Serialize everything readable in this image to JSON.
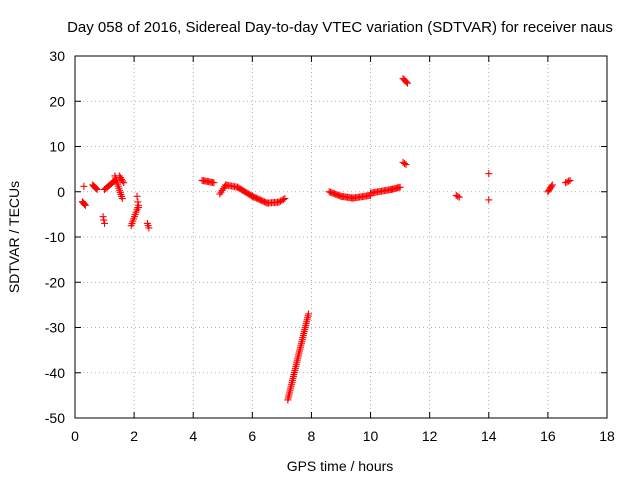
{
  "chart_data": {
    "type": "scatter",
    "title": "Day 058 of 2016, Sidereal Day-to-day VTEC variation (SDTVAR) for receiver naus",
    "xlabel": "GPS time / hours",
    "ylabel": "SDTVAR / TECUs",
    "xlim": [
      0,
      18
    ],
    "ylim": [
      -50,
      30
    ],
    "xticks": [
      0,
      2,
      4,
      6,
      8,
      10,
      12,
      14,
      16,
      18
    ],
    "yticks": [
      -50,
      -40,
      -30,
      -20,
      -10,
      0,
      10,
      20,
      30
    ],
    "grid": true,
    "marker": "+",
    "color": "#ff0000",
    "series": [
      {
        "name": "SDTVAR",
        "segments": [
          {
            "x0": 0.25,
            "y0": -2.2,
            "x1": 0.35,
            "y1": -3.0,
            "n": 5
          },
          {
            "x0": 0.6,
            "y0": 1.5,
            "x1": 0.75,
            "y1": 0.5,
            "n": 6
          },
          {
            "x0": 0.95,
            "y0": -5.5,
            "x1": 1.0,
            "y1": -7.0,
            "n": 3
          },
          {
            "x0": 1.0,
            "y0": 0.5,
            "x1": 1.35,
            "y1": 2.5,
            "n": 10
          },
          {
            "x0": 1.35,
            "y0": 3.5,
            "x1": 1.6,
            "y1": -1.5,
            "n": 12
          },
          {
            "x0": 1.5,
            "y0": 3.5,
            "x1": 1.65,
            "y1": 2.0,
            "n": 5
          },
          {
            "x0": 1.9,
            "y0": -7.5,
            "x1": 2.15,
            "y1": -3.0,
            "n": 10
          },
          {
            "x0": 2.1,
            "y0": -1.0,
            "x1": 2.15,
            "y1": -3.5,
            "n": 3
          },
          {
            "x0": 2.45,
            "y0": -7.0,
            "x1": 2.5,
            "y1": -8.0,
            "n": 3
          },
          {
            "x0": 4.3,
            "y0": 2.5,
            "x1": 4.7,
            "y1": 2.0,
            "n": 10
          },
          {
            "x0": 4.9,
            "y0": -0.5,
            "x1": 5.1,
            "y1": 1.5,
            "n": 6
          },
          {
            "x0": 5.1,
            "y0": 1.5,
            "x1": 5.5,
            "y1": 1.0,
            "n": 9
          },
          {
            "x0": 5.5,
            "y0": 1.0,
            "x1": 6.0,
            "y1": -1.0,
            "n": 12
          },
          {
            "x0": 6.0,
            "y0": -1.0,
            "x1": 6.5,
            "y1": -2.5,
            "n": 12
          },
          {
            "x0": 6.5,
            "y0": -2.5,
            "x1": 6.9,
            "y1": -2.3,
            "n": 9
          },
          {
            "x0": 6.9,
            "y0": -2.3,
            "x1": 7.1,
            "y1": -1.5,
            "n": 5
          },
          {
            "x0": 7.2,
            "y0": -46.0,
            "x1": 7.9,
            "y1": -27.0,
            "n": 45
          },
          {
            "x0": 8.6,
            "y0": 0.0,
            "x1": 9.0,
            "y1": -1.0,
            "n": 10
          },
          {
            "x0": 9.0,
            "y0": -1.0,
            "x1": 9.4,
            "y1": -1.4,
            "n": 10
          },
          {
            "x0": 9.4,
            "y0": -1.4,
            "x1": 10.0,
            "y1": -0.8,
            "n": 14
          },
          {
            "x0": 10.0,
            "y0": -0.3,
            "x1": 10.7,
            "y1": 0.5,
            "n": 16
          },
          {
            "x0": 10.7,
            "y0": 0.5,
            "x1": 11.0,
            "y1": 1.0,
            "n": 8
          },
          {
            "x0": 11.1,
            "y0": 6.5,
            "x1": 11.2,
            "y1": 6.0,
            "n": 3
          },
          {
            "x0": 11.1,
            "y0": 25.0,
            "x1": 11.25,
            "y1": 24.0,
            "n": 5
          },
          {
            "x0": 12.9,
            "y0": -0.8,
            "x1": 13.0,
            "y1": -1.2,
            "n": 3
          },
          {
            "x0": 14.0,
            "y0": 4.0,
            "x1": 14.0,
            "y1": 4.0,
            "n": 1
          },
          {
            "x0": 14.0,
            "y0": -1.8,
            "x1": 14.0,
            "y1": -1.8,
            "n": 1
          },
          {
            "x0": 16.0,
            "y0": 0.0,
            "x1": 16.15,
            "y1": 1.5,
            "n": 6
          },
          {
            "x0": 16.6,
            "y0": 2.0,
            "x1": 16.75,
            "y1": 2.5,
            "n": 4
          },
          {
            "x0": 0.3,
            "y0": 1.2,
            "x1": 0.3,
            "y1": 1.2,
            "n": 1
          }
        ]
      }
    ]
  }
}
